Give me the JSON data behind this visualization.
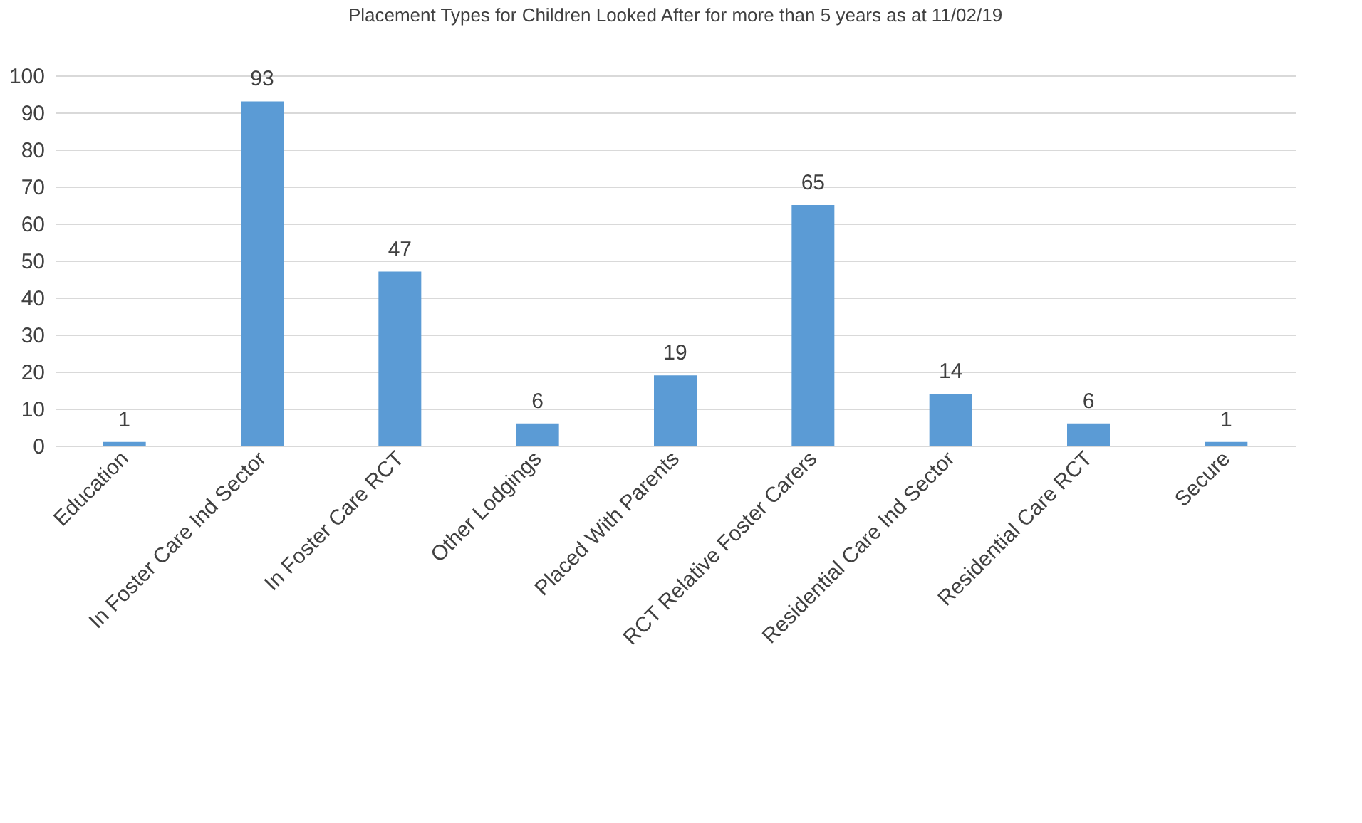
{
  "chart_data": {
    "type": "bar",
    "title": "Placement Types for Children Looked After for more than 5 years as at 11/02/19",
    "categories": [
      "Education",
      "In Foster Care Ind Sector",
      "In Foster Care RCT",
      "Other Lodgings",
      "Placed With Parents",
      "RCT Relative Foster Carers",
      "Residential Care Ind Sector",
      "Residential Care RCT",
      "Secure"
    ],
    "values": [
      1,
      93,
      47,
      6,
      19,
      65,
      14,
      6,
      1
    ],
    "color": "#5b9bd5",
    "ylim": [
      0,
      100
    ],
    "yticks": [
      0,
      10,
      20,
      30,
      40,
      50,
      60,
      70,
      80,
      90,
      100
    ],
    "grid": "y",
    "data_labels": true
  }
}
